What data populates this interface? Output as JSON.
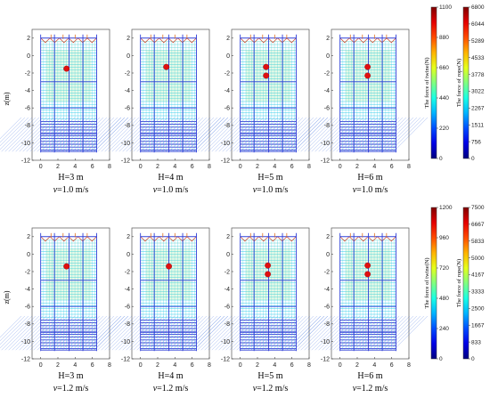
{
  "chart_data": [
    {
      "type": "heatmap",
      "row": 0,
      "col": 0,
      "title_h": "H=3 m",
      "title_v": "=1.0 m/s",
      "v_symbol": "v",
      "ylabel": "z(m)",
      "xlim": [
        -1,
        8
      ],
      "ylim": [
        -12,
        3
      ],
      "xticks": [
        0,
        2,
        4,
        6,
        8
      ],
      "yticks": [
        2,
        0,
        -2,
        -4,
        -6,
        -8,
        -10,
        -12
      ],
      "net_x": [
        0,
        6.5
      ],
      "net_y": [
        -11,
        2
      ],
      "targets": [
        {
          "x": 3.0,
          "z": -1.5
        }
      ],
      "colormap": "jet"
    },
    {
      "type": "heatmap",
      "row": 0,
      "col": 1,
      "title_h": "H=4 m",
      "title_v": "=1.0 m/s",
      "v_symbol": "v",
      "ylabel": "",
      "xlim": [
        -1,
        8
      ],
      "ylim": [
        -12,
        3
      ],
      "xticks": [
        0,
        2,
        4,
        6,
        8
      ],
      "yticks": [
        2,
        0,
        -2,
        -4,
        -6,
        -8,
        -10,
        -12
      ],
      "net_x": [
        0,
        6.5
      ],
      "net_y": [
        -11,
        2
      ],
      "targets": [
        {
          "x": 3.0,
          "z": -1.3
        }
      ],
      "colormap": "jet"
    },
    {
      "type": "heatmap",
      "row": 0,
      "col": 2,
      "title_h": "H=5 m",
      "title_v": "=1.0 m/s",
      "v_symbol": "v",
      "ylabel": "",
      "xlim": [
        -1,
        8
      ],
      "ylim": [
        -12,
        3
      ],
      "xticks": [
        0,
        2,
        4,
        6,
        8
      ],
      "yticks": [
        2,
        0,
        -2,
        -4,
        -6,
        -8,
        -10,
        -12
      ],
      "net_x": [
        0,
        6.5
      ],
      "net_y": [
        -11,
        2
      ],
      "targets": [
        {
          "x": 3.0,
          "z": -1.3
        },
        {
          "x": 3.0,
          "z": -2.3
        }
      ],
      "colormap": "jet"
    },
    {
      "type": "heatmap",
      "row": 0,
      "col": 3,
      "title_h": "H=6 m",
      "title_v": "=1.0 m/s",
      "v_symbol": "v",
      "ylabel": "",
      "xlim": [
        -1,
        8
      ],
      "ylim": [
        -12,
        3
      ],
      "xticks": [
        0,
        2,
        4,
        6,
        8
      ],
      "yticks": [
        2,
        0,
        -2,
        -4,
        -6,
        -8,
        -10,
        -12
      ],
      "net_x": [
        0,
        6.5
      ],
      "net_y": [
        -11,
        2
      ],
      "targets": [
        {
          "x": 3.2,
          "z": -1.3
        },
        {
          "x": 3.2,
          "z": -2.3
        }
      ],
      "colormap": "jet"
    },
    {
      "type": "heatmap",
      "row": 1,
      "col": 0,
      "title_h": "H=3 m",
      "title_v": "=1.2 m/s",
      "v_symbol": "v",
      "ylabel": "z(m)",
      "xlim": [
        -1,
        8
      ],
      "ylim": [
        -12,
        3
      ],
      "xticks": [
        0,
        2,
        4,
        6,
        8
      ],
      "yticks": [
        2,
        0,
        -2,
        -4,
        -6,
        -8,
        -10,
        -12
      ],
      "net_x": [
        0,
        6.5
      ],
      "net_y": [
        -11,
        2
      ],
      "targets": [
        {
          "x": 3.0,
          "z": -1.4
        }
      ],
      "colormap": "jet"
    },
    {
      "type": "heatmap",
      "row": 1,
      "col": 1,
      "title_h": "H=4 m",
      "title_v": "=1.2 m/s",
      "v_symbol": "v",
      "ylabel": "",
      "xlim": [
        -1,
        8
      ],
      "ylim": [
        -12,
        3
      ],
      "xticks": [
        0,
        2,
        4,
        6,
        8
      ],
      "yticks": [
        2,
        0,
        -2,
        -4,
        -6,
        -8,
        -10,
        -12
      ],
      "net_x": [
        0,
        6.5
      ],
      "net_y": [
        -11,
        2
      ],
      "targets": [
        {
          "x": 3.3,
          "z": -1.4
        }
      ],
      "colormap": "jet"
    },
    {
      "type": "heatmap",
      "row": 1,
      "col": 2,
      "title_h": "H=5 m",
      "title_v": "=1.2 m/s",
      "v_symbol": "v",
      "ylabel": "",
      "xlim": [
        -1,
        8
      ],
      "ylim": [
        -12,
        3
      ],
      "xticks": [
        0,
        2,
        4,
        6,
        8
      ],
      "yticks": [
        2,
        0,
        -2,
        -4,
        -6,
        -8,
        -10,
        -12
      ],
      "net_x": [
        0,
        6.5
      ],
      "net_y": [
        -11,
        2
      ],
      "targets": [
        {
          "x": 3.2,
          "z": -1.3
        },
        {
          "x": 3.2,
          "z": -2.3
        }
      ],
      "colormap": "jet"
    },
    {
      "type": "heatmap",
      "row": 1,
      "col": 3,
      "title_h": "H=6 m",
      "title_v": "=1.2 m/s",
      "v_symbol": "v",
      "ylabel": "",
      "xlim": [
        -1,
        8
      ],
      "ylim": [
        -12,
        3
      ],
      "xticks": [
        0,
        2,
        4,
        6,
        8
      ],
      "yticks": [
        2,
        0,
        -2,
        -4,
        -6,
        -8,
        -10,
        -12
      ],
      "net_x": [
        0,
        6.5
      ],
      "net_y": [
        -11,
        2
      ],
      "targets": [
        {
          "x": 3.2,
          "z": -1.3
        },
        {
          "x": 3.2,
          "z": -2.3
        }
      ],
      "colormap": "jet"
    }
  ],
  "colorbars": [
    {
      "row": 0,
      "label": "The force of twine(N)",
      "min": 0,
      "max": 1100,
      "ticks": [
        0,
        220,
        440,
        660,
        880,
        1100
      ]
    },
    {
      "row": 0,
      "label": "The force of rope(N)",
      "min": 0,
      "max": 6800,
      "ticks": [
        0,
        756,
        1511,
        2267,
        3022,
        3778,
        4533,
        5289,
        6044,
        6800
      ]
    },
    {
      "row": 1,
      "label": "The force of twine(N)",
      "min": 0,
      "max": 1200,
      "ticks": [
        0,
        240,
        480,
        720,
        960,
        1200
      ]
    },
    {
      "row": 1,
      "label": "The force of rope(N)",
      "min": 0,
      "max": 7500,
      "ticks": [
        0,
        833,
        1667,
        2500,
        3333,
        4167,
        5000,
        5833,
        6667,
        7500
      ]
    }
  ],
  "colors": {
    "mesh_low": "#22c8e8",
    "mesh_mid": "#9be8a0",
    "mesh_bottom": "#2a2ad0",
    "rope": "#3040d8",
    "top_mesh": "#d04020",
    "target": "#e01010"
  }
}
